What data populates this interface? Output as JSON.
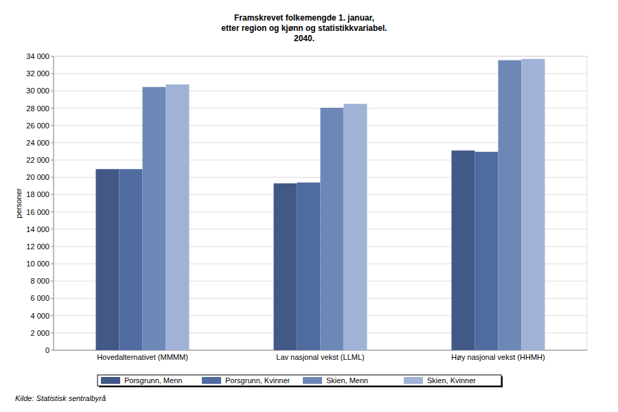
{
  "chart_data": {
    "type": "bar",
    "title": "Framskrevet folkemengde 1. januar,\netter region og kjønn og statistikkvariabel.\n2040.",
    "y_label": "personer",
    "annotations": [
      "Kilde: Statistisk sentralbyrå"
    ],
    "categories": [
      "Hovedalternativet (MMMM)",
      "Lav nasjonal vekst (LLML)",
      "Høy nasjonal vekst (HHMH)"
    ],
    "series": [
      {
        "name": "Porsgrunn, Menn",
        "color": "#425887",
        "values": [
          20950,
          19300,
          23100
        ]
      },
      {
        "name": "Porsgrunn, Kvinner",
        "color": "#4f6ba0",
        "values": [
          20950,
          19400,
          22950
        ]
      },
      {
        "name": "Skien, Menn",
        "color": "#6d88b6",
        "values": [
          30450,
          28050,
          33550
        ]
      },
      {
        "name": "Skien, Kvinner",
        "color": "#a0b2d6",
        "values": [
          30750,
          28500,
          33700
        ]
      }
    ],
    "ylim": [
      0,
      34000
    ],
    "yticks": [
      0,
      {
        "value": 2000,
        "label": "2 000"
      },
      {
        "value": 4000,
        "label": "4 000"
      },
      {
        "value": 6000,
        "label": "6 000"
      },
      {
        "value": 8000,
        "label": "8 000"
      },
      {
        "value": 10000,
        "label": "10 000"
      },
      {
        "value": 12000,
        "label": "12 000"
      },
      {
        "value": 14000,
        "label": "14 000"
      },
      {
        "value": 16000,
        "label": "16 000"
      },
      {
        "value": 18000,
        "label": "18 000"
      },
      {
        "value": 20000,
        "label": "20 000"
      },
      {
        "value": 22000,
        "label": "22 000"
      },
      {
        "value": 24000,
        "label": "24 000"
      },
      {
        "value": 26000,
        "label": "26 000"
      },
      {
        "value": 28000,
        "label": "28 000"
      },
      {
        "value": 30000,
        "label": "30 000"
      },
      {
        "value": 32000,
        "label": "32 000"
      },
      {
        "value": 34000,
        "label": "34 000"
      }
    ],
    "grid": true,
    "legend": "bottom"
  }
}
